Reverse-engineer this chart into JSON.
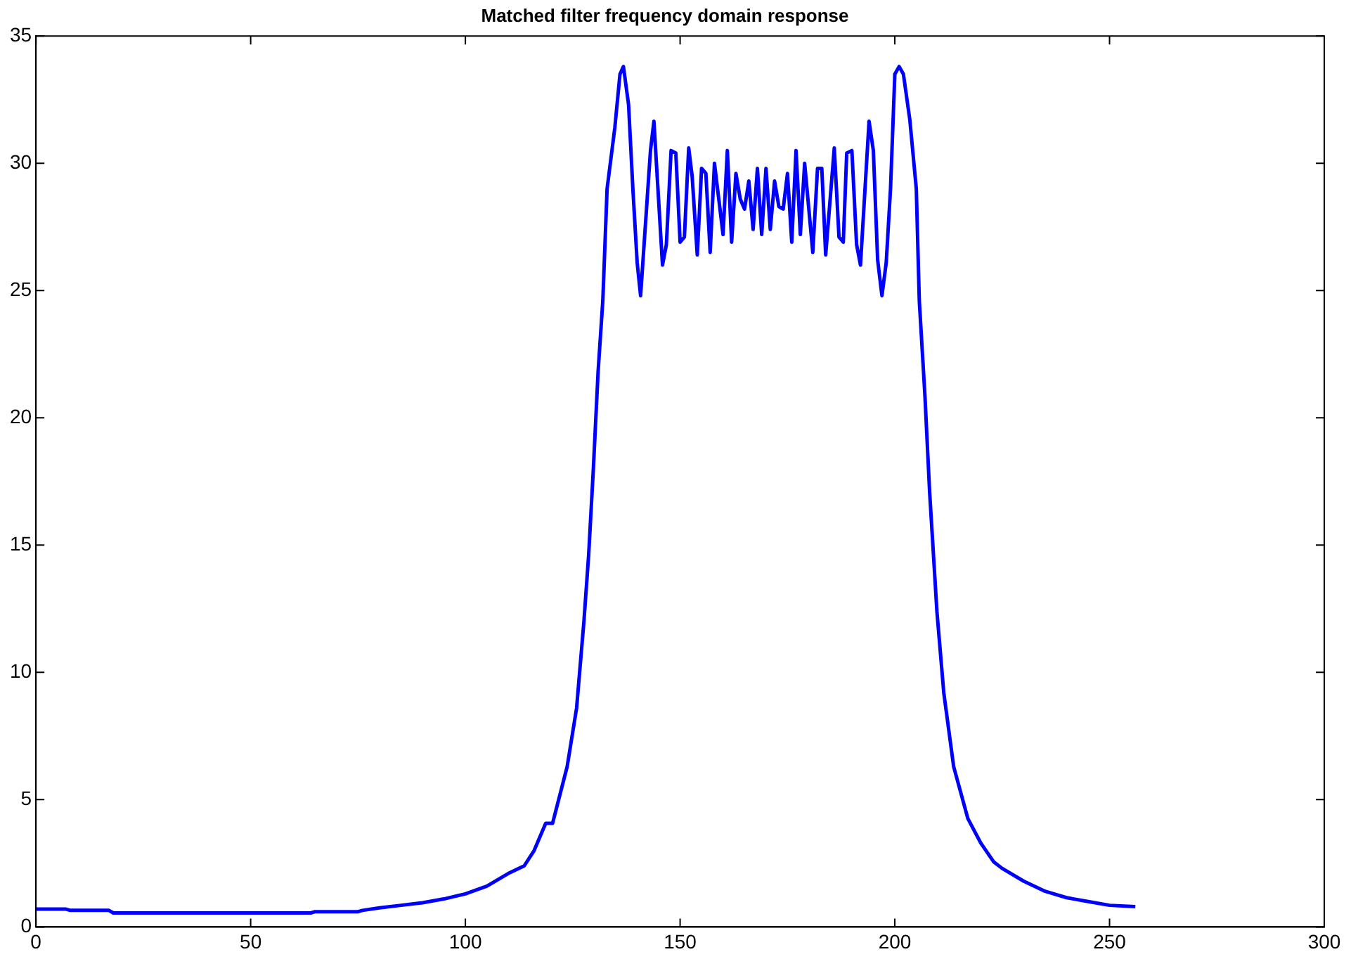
{
  "chart_data": {
    "type": "line",
    "title": "Matched filter frequency domain response",
    "xlim": [
      0,
      300
    ],
    "xticks": [
      0,
      50,
      100,
      150,
      200,
      250,
      300
    ],
    "ylim": [
      0,
      35
    ],
    "yticks": [
      0,
      5,
      10,
      15,
      20,
      25,
      30,
      35
    ],
    "grid": false,
    "marker": "none",
    "line_style": "solid",
    "series": [
      {
        "color": "#0000ff",
        "x": [
          0,
          7,
          8,
          17,
          18,
          30,
          50,
          64,
          65,
          75,
          76,
          80,
          85,
          90,
          95,
          100,
          105,
          110,
          113.7,
          116,
          118.7,
          120.3,
          123.7,
          125.9,
          127.6,
          128.7,
          129.8,
          130.9,
          132,
          133,
          134.8,
          136,
          136.8,
          138,
          139,
          140,
          140.8,
          143.1,
          143.9,
          145.9,
          146.8,
          147.9,
          149,
          150,
          151,
          152,
          152.8,
          154,
          155,
          156,
          157,
          158,
          159,
          160,
          161,
          162,
          163,
          164,
          165,
          166,
          167,
          168,
          169,
          170,
          171,
          172,
          173,
          174,
          175,
          176,
          177,
          178,
          179,
          180.9,
          182,
          183,
          183.9,
          185.9,
          187,
          188,
          188.8,
          190,
          191.1,
          192,
          194,
          195,
          196,
          197,
          198,
          199,
          200,
          201,
          202,
          203.5,
          205,
          205.7,
          207,
          208.1,
          209.8,
          211.4,
          213.7,
          217,
          220,
          223,
          225,
          230,
          235,
          240,
          245,
          250,
          256
        ],
        "values": [
          0.7,
          0.7,
          0.65,
          0.65,
          0.55,
          0.55,
          0.55,
          0.55,
          0.6,
          0.6,
          0.65,
          0.75,
          0.85,
          0.95,
          1.1,
          1.3,
          1.6,
          2.1,
          2.4,
          3.0,
          4.07,
          4.07,
          6.3,
          8.6,
          12.0,
          14.6,
          18.0,
          21.8,
          24.6,
          29.0,
          31.4,
          33.5,
          33.8,
          32.3,
          29.0,
          26.1,
          24.8,
          30.5,
          31.65,
          26.0,
          26.8,
          30.5,
          30.4,
          26.9,
          27.1,
          30.6,
          29.5,
          26.4,
          29.8,
          29.6,
          26.5,
          30.0,
          28.6,
          27.2,
          30.5,
          26.9,
          29.6,
          28.6,
          28.2,
          29.3,
          27.4,
          29.8,
          27.2,
          29.8,
          27.4,
          29.3,
          28.3,
          28.2,
          29.6,
          26.9,
          30.5,
          27.2,
          30.0,
          26.5,
          29.8,
          29.8,
          26.4,
          30.6,
          27.1,
          26.9,
          30.4,
          30.5,
          26.8,
          26.0,
          31.65,
          30.5,
          26.2,
          24.8,
          26.1,
          29.0,
          33.5,
          33.8,
          33.5,
          31.7,
          29.0,
          24.6,
          20.9,
          17.1,
          12.4,
          9.2,
          6.3,
          4.26,
          3.3,
          2.56,
          2.3,
          1.8,
          1.4,
          1.15,
          1.0,
          0.85,
          0.8
        ]
      }
    ]
  }
}
